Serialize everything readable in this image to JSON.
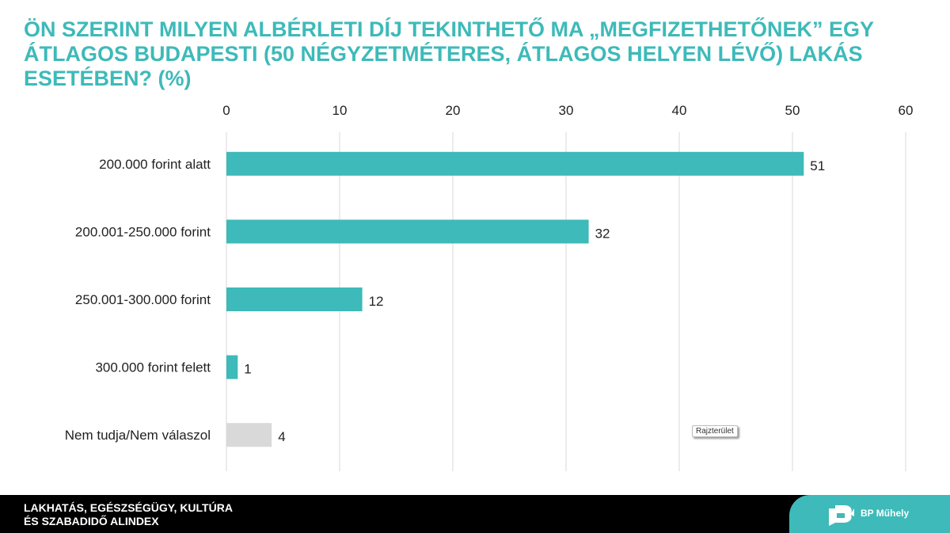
{
  "title": "Ön szerint milyen albérleti díj tekinthető ma „megfizethetőnek” egy átlagos budapesti (50 négyzetméteres, átlagos helyen lévő) lakás esetében? (%)",
  "colors": {
    "accent": "#3dbab9",
    "bar": "#3dbab9",
    "bar_other": "#d9d9d9",
    "grid": "#d9d9d9"
  },
  "chart_data": {
    "type": "bar",
    "orientation": "horizontal",
    "title": "Ön szerint milyen albérleti díj tekinthető ma „megfizethetőnek” egy átlagos budapesti (50 négyzetméteres, átlagos helyen lévő) lakás esetében? (%)",
    "categories": [
      "200.000 forint alatt",
      "200.001-250.000 forint",
      "250.001-300.000 forint",
      "300.000 forint felett",
      "Nem tudja/Nem válaszol"
    ],
    "values": [
      51,
      32,
      12,
      1,
      4
    ],
    "xlim": [
      0,
      60
    ],
    "xticks": [
      0,
      10,
      20,
      30,
      40,
      50,
      60
    ],
    "axis_position": "top",
    "grid": true,
    "data_labels": true
  },
  "tooltip": "Rajzterület",
  "footer": {
    "line1": "LAKHATÁS, EGÉSZSÉGÜGY, KULTÚRA",
    "line2": "ÉS SZABADIDŐ ALINDEX",
    "brand": "BP Műhely",
    "logo_icon": "bp-muhely-logo"
  }
}
